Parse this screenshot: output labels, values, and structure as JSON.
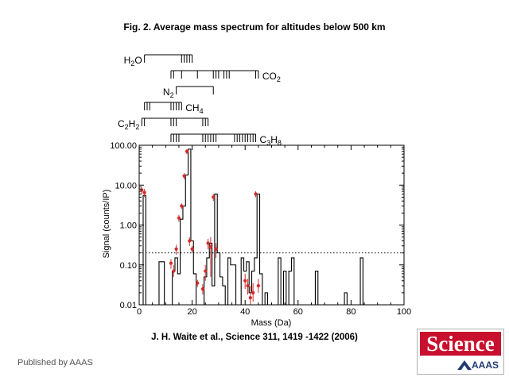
{
  "header": {
    "title": "Fig. 2. Average mass spectrum for altitudes below 500 km"
  },
  "footer": {
    "citation": "J. H.  Waite et al.,  Science  311, 1419 -1422 (2006)",
    "published": "Published by AAAS"
  },
  "logo": {
    "wordmark": "Science",
    "aaas": "AAAS",
    "colors": {
      "background": "#c8102e",
      "text": "#ffffff",
      "aaas": "#1f3a72"
    }
  },
  "chart_data": {
    "type": "line",
    "xlabel": "Mass (Da)",
    "ylabel": "Signal (counts/IP)",
    "xlim": [
      0,
      100
    ],
    "ylim": [
      0.01,
      100
    ],
    "yscale": "log",
    "x_ticks": [
      0,
      20,
      40,
      60,
      80,
      100
    ],
    "y_ticks": [
      {
        "value": 100,
        "label": "100.00"
      },
      {
        "value": 10,
        "label": "10.00"
      },
      {
        "value": 1,
        "label": "1.00"
      },
      {
        "value": 0.1,
        "label": "0.10"
      },
      {
        "value": 0.01,
        "label": "0.01"
      }
    ],
    "threshold": {
      "value": 0.2,
      "style": "dotted"
    },
    "series": [
      {
        "style": "step",
        "color": "#000000",
        "points": [
          [
            0,
            0.01
          ],
          [
            1,
            5.5
          ],
          [
            2,
            0.01
          ],
          [
            3,
            0.01
          ],
          [
            4,
            0.01
          ],
          [
            5,
            0.01
          ],
          [
            6,
            0.01
          ],
          [
            7,
            0.12
          ],
          [
            8,
            0.12
          ],
          [
            9,
            0.01
          ],
          [
            10,
            0.01
          ],
          [
            11,
            0.01
          ],
          [
            12,
            0.07
          ],
          [
            13,
            0.15
          ],
          [
            14,
            0.06
          ],
          [
            15,
            1.4
          ],
          [
            16,
            3.0
          ],
          [
            17,
            18
          ],
          [
            18,
            80
          ],
          [
            19,
            0.4
          ],
          [
            20,
            0.06
          ],
          [
            21,
            0.01
          ],
          [
            22,
            0.01
          ],
          [
            23,
            0.01
          ],
          [
            24,
            0.05
          ],
          [
            25,
            0.15
          ],
          [
            26,
            0.35
          ],
          [
            27,
            0.03
          ],
          [
            28,
            6
          ],
          [
            29,
            0.2
          ],
          [
            30,
            0.05
          ],
          [
            31,
            0.03
          ],
          [
            32,
            0.01
          ],
          [
            33,
            0.15
          ],
          [
            34,
            0.1
          ],
          [
            35,
            0.1
          ],
          [
            36,
            0.01
          ],
          [
            37,
            0.01
          ],
          [
            38,
            0.15
          ],
          [
            39,
            0.07
          ],
          [
            40,
            0.12
          ],
          [
            41,
            0.02
          ],
          [
            42,
            0.07
          ],
          [
            43,
            0.15
          ],
          [
            44,
            6
          ],
          [
            45,
            0.06
          ],
          [
            46,
            0.01
          ],
          [
            47,
            0.02
          ],
          [
            48,
            0.01
          ],
          [
            49,
            0.01
          ],
          [
            50,
            0.01
          ],
          [
            51,
            0.01
          ],
          [
            52,
            0.15
          ],
          [
            53,
            0.01
          ],
          [
            54,
            0.07
          ],
          [
            55,
            0.01
          ],
          [
            56,
            0.07
          ],
          [
            57,
            0.15
          ],
          [
            58,
            0.01
          ],
          [
            59,
            0.01
          ],
          [
            60,
            0.01
          ],
          [
            61,
            0.01
          ],
          [
            62,
            0.01
          ],
          [
            63,
            0.01
          ],
          [
            64,
            0.01
          ],
          [
            65,
            0.01
          ],
          [
            66,
            0.07
          ],
          [
            67,
            0.01
          ],
          [
            68,
            0.01
          ],
          [
            69,
            0.01
          ],
          [
            70,
            0.01
          ],
          [
            71,
            0.01
          ],
          [
            72,
            0.01
          ],
          [
            73,
            0.01
          ],
          [
            74,
            0.01
          ],
          [
            75,
            0.01
          ],
          [
            76,
            0.01
          ],
          [
            77,
            0.02
          ],
          [
            78,
            0.01
          ],
          [
            79,
            0.01
          ],
          [
            80,
            0.01
          ],
          [
            81,
            0.01
          ],
          [
            82,
            0.01
          ],
          [
            83,
            0.15
          ],
          [
            84,
            0.01
          ],
          [
            85,
            0.01
          ]
        ]
      },
      {
        "style": "points-errorbars",
        "color": "#d42a2a",
        "points": [
          {
            "x": 1,
            "y": 7.5,
            "lo": 6,
            "hi": 9
          },
          {
            "x": 2,
            "y": 6.5,
            "lo": 5,
            "hi": 8
          },
          {
            "x": 12,
            "y": 0.11,
            "lo": 0.08,
            "hi": 0.14
          },
          {
            "x": 13,
            "y": 0.07,
            "lo": 0.05,
            "hi": 0.1
          },
          {
            "x": 14,
            "y": 0.25,
            "lo": 0.18,
            "hi": 0.32
          },
          {
            "x": 15,
            "y": 1.5,
            "lo": 1.2,
            "hi": 1.8
          },
          {
            "x": 16,
            "y": 3.0,
            "lo": 2.5,
            "hi": 3.5
          },
          {
            "x": 17,
            "y": 17,
            "lo": 14,
            "hi": 20
          },
          {
            "x": 18,
            "y": 70,
            "lo": 60,
            "hi": 80
          },
          {
            "x": 19,
            "y": 0.4,
            "lo": 0.3,
            "hi": 0.5
          },
          {
            "x": 20,
            "y": 0.25,
            "lo": 0.2,
            "hi": 0.3
          },
          {
            "x": 22,
            "y": 0.035,
            "lo": 0.028,
            "hi": 0.042
          },
          {
            "x": 24,
            "y": 0.025,
            "lo": 0.018,
            "hi": 0.033
          },
          {
            "x": 25,
            "y": 0.07,
            "lo": 0.04,
            "hi": 0.1
          },
          {
            "x": 26,
            "y": 0.35,
            "lo": 0.25,
            "hi": 0.45
          },
          {
            "x": 27,
            "y": 0.28,
            "lo": 0.05,
            "hi": 0.5
          },
          {
            "x": 28,
            "y": 5.0,
            "lo": 4,
            "hi": 6
          },
          {
            "x": 29,
            "y": 0.25,
            "lo": 0.15,
            "hi": 0.35
          },
          {
            "x": 40,
            "y": 0.04,
            "lo": 0.025,
            "hi": 0.06
          },
          {
            "x": 41,
            "y": 0.03,
            "lo": 0.018,
            "hi": 0.045
          },
          {
            "x": 42,
            "y": 0.015,
            "lo": 0.01,
            "hi": 0.03
          },
          {
            "x": 43,
            "y": 0.02,
            "lo": 0.012,
            "hi": 0.035
          },
          {
            "x": 44,
            "y": 6.0,
            "lo": 5,
            "hi": 7
          },
          {
            "x": 45,
            "y": 0.03,
            "lo": 0.02,
            "hi": 0.045
          }
        ]
      }
    ],
    "species": [
      {
        "label": "H2O",
        "sub": [
          "H",
          "2",
          "O"
        ],
        "label_side": "left",
        "line_from": 2,
        "line_to": 20,
        "ticks": [
          2,
          16,
          17,
          18,
          19,
          20
        ]
      },
      {
        "label": "CO2",
        "sub": [
          "CO",
          "2",
          ""
        ],
        "label_side": "right",
        "line_from": 12,
        "line_to": 45,
        "ticks": [
          12,
          13,
          16,
          22,
          28,
          29,
          30,
          32,
          33,
          34,
          44,
          45
        ]
      },
      {
        "label": "N2",
        "sub": [
          "N",
          "2",
          ""
        ],
        "label_side": "left",
        "line_from": 14,
        "line_to": 28,
        "ticks": [
          14,
          28
        ]
      },
      {
        "label": "CH4",
        "sub": [
          "CH",
          "4",
          ""
        ],
        "label_side": "right",
        "line_from": 2,
        "line_to": 16,
        "ticks": [
          2,
          3,
          4,
          12,
          13,
          14,
          15,
          16
        ]
      },
      {
        "label": "C2H2",
        "sub": [
          "C",
          "2",
          "H",
          "2"
        ],
        "label_side": "left",
        "line_from": 1,
        "line_to": 26,
        "ticks": [
          1,
          2,
          12,
          13,
          14,
          24,
          25,
          26
        ]
      },
      {
        "label": "C3H8",
        "sub": [
          "C",
          "3",
          "H",
          "8"
        ],
        "label_side": "right",
        "line_from": 12,
        "line_to": 44,
        "ticks": [
          12,
          13,
          14,
          15,
          24,
          25,
          26,
          27,
          28,
          29,
          36,
          37,
          38,
          39,
          40,
          41,
          42,
          43,
          44
        ]
      }
    ]
  }
}
